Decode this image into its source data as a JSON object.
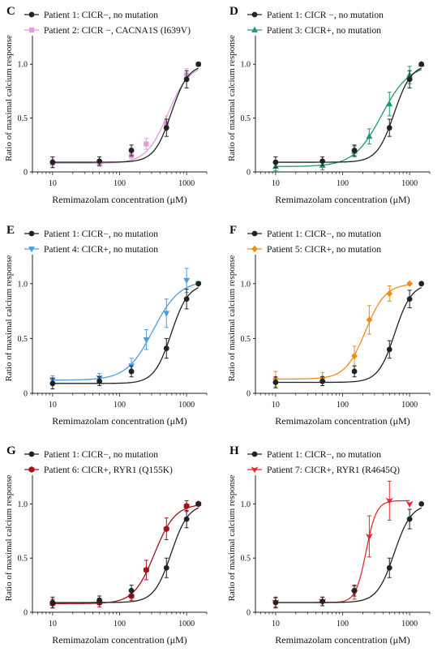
{
  "figure": {
    "ylabel": "Ratio of maximal calcium response",
    "xlabel": "Remimazolam concentration (μM)"
  },
  "chart_data": [
    {
      "type": "line",
      "panel": "C",
      "xscale": "log",
      "xlim": [
        5,
        2000
      ],
      "ylim": [
        0,
        1.25
      ],
      "xticks": [
        "10",
        "100",
        "1000"
      ],
      "yticks": [
        "0",
        "0.5",
        "1.0"
      ],
      "xlabel": "Remimazolam concentration (μM)",
      "ylabel": "Ratio of maximal calcium response",
      "legend_position": "top-left",
      "series": [
        {
          "name": "Patient 1: CICR−, no mutation",
          "color": "#222222",
          "marker": "circle",
          "x": [
            10,
            50,
            150,
            500,
            1000,
            1500
          ],
          "y": [
            0.09,
            0.1,
            0.2,
            0.41,
            0.86,
            1.0
          ],
          "err": [
            0.05,
            0.04,
            0.05,
            0.08,
            0.08,
            0.0
          ]
        },
        {
          "name": "Patient 2: CICR −, CACNA1S (I639V)",
          "color": "#e79be0",
          "marker": "square",
          "x": [
            10,
            50,
            150,
            250,
            500,
            1000,
            1500
          ],
          "y": [
            0.08,
            0.08,
            0.15,
            0.26,
            0.45,
            0.9,
            1.0
          ],
          "err": [
            0.04,
            0.03,
            0.04,
            0.05,
            0.07,
            0.06,
            0.0
          ]
        }
      ]
    },
    {
      "type": "line",
      "panel": "D",
      "xscale": "log",
      "xlim": [
        5,
        2000
      ],
      "ylim": [
        0,
        1.25
      ],
      "xticks": [
        "10",
        "100",
        "1000"
      ],
      "yticks": [
        "0",
        "0.5",
        "1.0"
      ],
      "xlabel": "Remimazolam concentration (μM)",
      "ylabel": "Ratio of maximal calcium response",
      "legend_position": "top-left",
      "series": [
        {
          "name": "Patient 1: CICR −, no mutation",
          "color": "#222222",
          "marker": "circle",
          "x": [
            10,
            50,
            150,
            500,
            1000,
            1500
          ],
          "y": [
            0.09,
            0.1,
            0.2,
            0.41,
            0.86,
            1.0
          ],
          "err": [
            0.05,
            0.04,
            0.05,
            0.08,
            0.08,
            0.0
          ]
        },
        {
          "name": "Patient 3: CICR+, no mutation",
          "color": "#1a9a77",
          "marker": "triangle-up",
          "x": [
            10,
            50,
            150,
            250,
            500,
            1000,
            1500
          ],
          "y": [
            0.05,
            0.06,
            0.19,
            0.33,
            0.63,
            0.9,
            1.0
          ],
          "err": [
            0.04,
            0.04,
            0.05,
            0.07,
            0.11,
            0.08,
            0.0
          ]
        }
      ]
    },
    {
      "type": "line",
      "panel": "E",
      "xscale": "log",
      "xlim": [
        5,
        2000
      ],
      "ylim": [
        0,
        1.25
      ],
      "xticks": [
        "10",
        "100",
        "1000"
      ],
      "yticks": [
        "0",
        "0.5",
        "1.0"
      ],
      "xlabel": "Remimazolam concentration (μM)",
      "ylabel": "Ratio of maximal calcium response",
      "legend_position": "top-left",
      "series": [
        {
          "name": "Patient 1: CICR−, no mutation",
          "color": "#222222",
          "marker": "circle",
          "x": [
            10,
            50,
            150,
            500,
            1000,
            1500
          ],
          "y": [
            0.09,
            0.11,
            0.2,
            0.41,
            0.86,
            1.0
          ],
          "err": [
            0.05,
            0.04,
            0.05,
            0.09,
            0.09,
            0.0
          ]
        },
        {
          "name": "Patient 4: CICR+, no mutation",
          "color": "#4d9de0",
          "marker": "triangle-down",
          "x": [
            10,
            50,
            150,
            250,
            500,
            1000,
            1500
          ],
          "y": [
            0.12,
            0.14,
            0.25,
            0.49,
            0.73,
            1.03,
            1.0
          ],
          "err": [
            0.04,
            0.04,
            0.07,
            0.09,
            0.13,
            0.11,
            0.0
          ]
        }
      ]
    },
    {
      "type": "line",
      "panel": "F",
      "xscale": "log",
      "xlim": [
        5,
        2000
      ],
      "ylim": [
        0,
        1.25
      ],
      "xticks": [
        "10",
        "100",
        "1000"
      ],
      "yticks": [
        "0",
        "0.5",
        "1.0"
      ],
      "xlabel": "Remimazolam concentration (μM)",
      "ylabel": "Ratio of maximal calcium response",
      "legend_position": "top-left",
      "series": [
        {
          "name": "Patient 1: CICR−, no mutation",
          "color": "#222222",
          "marker": "circle",
          "x": [
            10,
            50,
            150,
            500,
            1000,
            1500
          ],
          "y": [
            0.1,
            0.11,
            0.2,
            0.4,
            0.86,
            1.0
          ],
          "err": [
            0.05,
            0.04,
            0.05,
            0.08,
            0.08,
            0.0
          ]
        },
        {
          "name": "Patient 5: CICR+, no mutation",
          "color": "#f08c1b",
          "marker": "diamond",
          "x": [
            10,
            50,
            150,
            250,
            500,
            1000
          ],
          "y": [
            0.13,
            0.14,
            0.34,
            0.67,
            0.91,
            1.0
          ],
          "err": [
            0.07,
            0.05,
            0.09,
            0.13,
            0.07,
            0.0
          ]
        }
      ]
    },
    {
      "type": "line",
      "panel": "G",
      "xscale": "log",
      "xlim": [
        5,
        2000
      ],
      "ylim": [
        0,
        1.25
      ],
      "xticks": [
        "10",
        "100",
        "1000"
      ],
      "yticks": [
        "0",
        "0.5",
        "1.0"
      ],
      "xlabel": "Remimazolam concentration (μM)",
      "ylabel": "Ratio of maximal calcium response",
      "legend_position": "top-left",
      "series": [
        {
          "name": "Patient 1: CICR−, no mutation",
          "color": "#222222",
          "marker": "circle",
          "x": [
            10,
            50,
            150,
            500,
            1000,
            1500
          ],
          "y": [
            0.09,
            0.11,
            0.2,
            0.41,
            0.86,
            1.0
          ],
          "err": [
            0.05,
            0.04,
            0.05,
            0.09,
            0.08,
            0.0
          ]
        },
        {
          "name": "Patient 6: CICR+, RYR1 (Q155K)",
          "color": "#a3131d",
          "marker": "hexagon",
          "x": [
            10,
            50,
            150,
            250,
            500,
            1000,
            1500
          ],
          "y": [
            0.08,
            0.09,
            0.15,
            0.39,
            0.77,
            0.98,
            1.0
          ],
          "err": [
            0.04,
            0.04,
            0.04,
            0.09,
            0.1,
            0.05,
            0.0
          ]
        }
      ]
    },
    {
      "type": "line",
      "panel": "H",
      "xscale": "log",
      "xlim": [
        5,
        2000
      ],
      "ylim": [
        0,
        1.25
      ],
      "xticks": [
        "10",
        "100",
        "1000"
      ],
      "yticks": [
        "0",
        "0.5",
        "1.0"
      ],
      "xlabel": "Remimazolam concentration (μM)",
      "ylabel": "Ratio of maximal calcium response",
      "legend_position": "top-left",
      "series": [
        {
          "name": "Patient 1: CICR−, no mutation",
          "color": "#222222",
          "marker": "circle",
          "x": [
            10,
            50,
            150,
            500,
            1000,
            1500
          ],
          "y": [
            0.09,
            0.1,
            0.2,
            0.41,
            0.86,
            1.0
          ],
          "err": [
            0.05,
            0.04,
            0.05,
            0.09,
            0.09,
            0.0
          ]
        },
        {
          "name": "Patient 7: CICR+, RYR1 (R4645Q)",
          "color": "#e8262b",
          "marker": "arrow-down",
          "x": [
            10,
            50,
            150,
            250,
            500,
            1000
          ],
          "y": [
            0.09,
            0.1,
            0.18,
            0.7,
            1.03,
            1.0
          ],
          "err": [
            0.04,
            0.04,
            0.06,
            0.19,
            0.18,
            0.0
          ]
        }
      ]
    }
  ]
}
